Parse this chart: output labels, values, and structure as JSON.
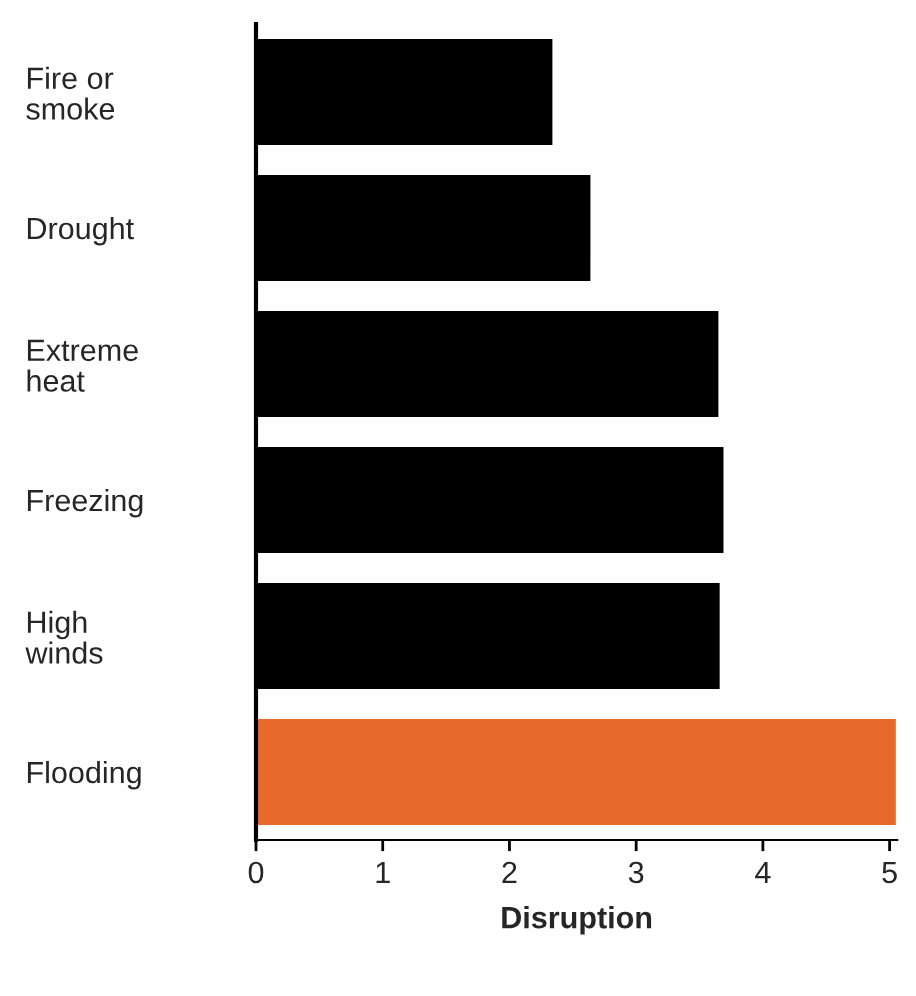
{
  "chart_data": {
    "type": "bar",
    "orientation": "horizontal",
    "xlabel": "Disruption",
    "categories": [
      "Fire or\nsmoke",
      "Drought",
      "Extreme\nheat",
      "Freezing",
      "High\nwinds",
      "Flooding"
    ],
    "values": [
      2.35,
      2.65,
      3.66,
      3.7,
      3.67,
      5.06
    ],
    "colors": [
      "#000000",
      "#000000",
      "#000000",
      "#000000",
      "#000000",
      "#e8692a"
    ],
    "xlim": [
      0,
      5.06
    ],
    "xticks": [
      0,
      1,
      2,
      3,
      4,
      5
    ],
    "grid": false,
    "legend": false
  }
}
